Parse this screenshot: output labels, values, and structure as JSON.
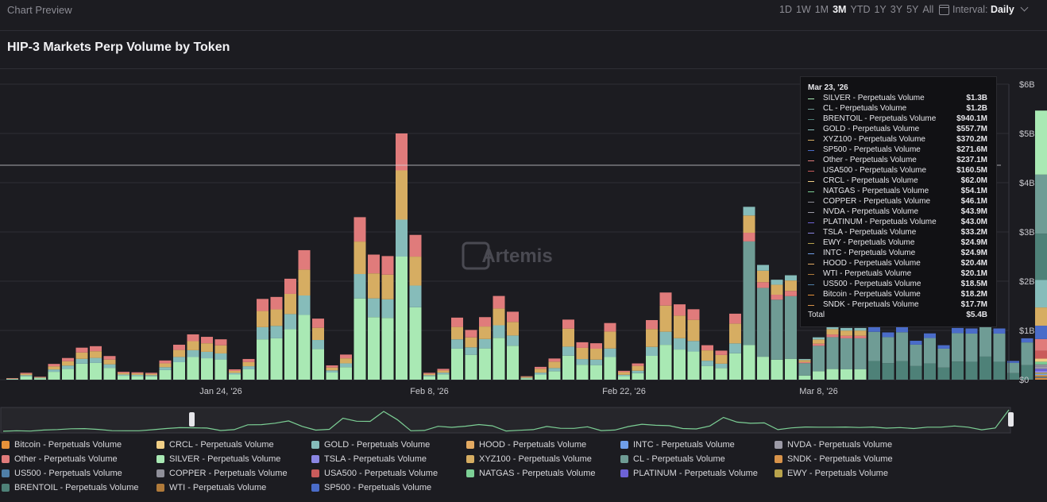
{
  "header": {
    "preview_label": "Chart Preview",
    "ranges": [
      "1D",
      "1W",
      "1M",
      "3M",
      "YTD",
      "1Y",
      "3Y",
      "5Y",
      "All"
    ],
    "selected_range": "3M",
    "interval_label": "Interval:",
    "interval_value": "Daily"
  },
  "watermark": "Artemis",
  "chart_data": {
    "type": "bar",
    "stacked": true,
    "title": "HIP-3 Markets Perp Volume by Token",
    "unit": "$B",
    "ylim": [
      0,
      6
    ],
    "y_ticks": [
      "$0",
      "$1B",
      "$2B",
      "$3B",
      "$4B",
      "$5B",
      "$6B"
    ],
    "x_tick_labels": [
      "Jan 24, '26",
      "Feb 8, '26",
      "Feb 22, '26",
      "Mar 8, '26"
    ],
    "x_tick_index": [
      15,
      30,
      44,
      58
    ],
    "series_order": [
      "Bitcoin",
      "CRCL",
      "GOLD",
      "HOOD",
      "INTC",
      "NVDA",
      "Other",
      "SILVER",
      "TSLA",
      "XYZ100",
      "CL",
      "SNDK",
      "US500",
      "COPPER",
      "USA500",
      "NATGAS",
      "PLATINUM",
      "EWY",
      "BRENTOIL",
      "WTI",
      "SP500"
    ],
    "colors": {
      "Bitcoin": "#e8923a",
      "CRCL": "#f1cf86",
      "GOLD": "#86bcba",
      "HOOD": "#e3aa62",
      "INTC": "#6f9ee8",
      "NVDA": "#9c9aa6",
      "Other": "#e07b7b",
      "SILVER": "#a9e9b4",
      "TSLA": "#8b86e3",
      "XYZ100": "#d6ad62",
      "CL": "#6f9c95",
      "SNDK": "#d8934a",
      "US500": "#4f7fa8",
      "COPPER": "#8f8f99",
      "USA500": "#c95b5b",
      "NATGAS": "#7ccf95",
      "PLATINUM": "#6d62d6",
      "EWY": "#b8a34c",
      "BRENTOIL": "#4e8178",
      "WTI": "#b07a3a",
      "SP500": "#4a6cc9"
    },
    "totals": [
      0.03,
      0.14,
      0.06,
      0.32,
      0.44,
      0.65,
      0.68,
      0.48,
      0.16,
      0.15,
      0.14,
      0.39,
      0.71,
      0.92,
      0.87,
      0.82,
      0.21,
      0.42,
      1.64,
      1.68,
      2.05,
      2.63,
      1.24,
      0.29,
      0.51,
      3.3,
      2.54,
      2.51,
      5.0,
      2.94,
      0.14,
      0.22,
      1.26,
      1.01,
      1.27,
      1.7,
      1.38,
      0.07,
      0.26,
      0.43,
      1.22,
      0.76,
      0.74,
      1.15,
      0.18,
      0.33,
      1.21,
      1.77,
      1.53,
      1.43,
      0.7,
      0.59,
      1.34,
      3.51,
      2.33,
      2.03,
      2.12,
      0.42,
      0.86,
      1.08,
      1.05,
      1.05,
      1.08,
      0.96,
      1.07,
      0.79,
      0.94,
      0.7,
      1.05,
      1.04,
      1.34,
      1.04,
      0.38,
      0.84,
      5.4
    ],
    "shares": [
      {
        "SILVER": 0.5,
        "GOLD": 0.15,
        "XYZ100": 0.2,
        "Other": 0.15
      },
      {
        "SILVER": 0.4,
        "GOLD": 0.15,
        "XYZ100": 0.3,
        "Other": 0.15
      },
      {
        "SILVER": 0.2,
        "CL": 0.6,
        "Other": 0.05,
        "XYZ100": 0.1,
        "GOLD": 0.05
      },
      {
        "BRENTOIL": 0.35,
        "CL": 0.55,
        "SP500": 0.1
      }
    ],
    "share_segments": [
      0,
      37,
      53,
      62,
      75
    ],
    "tooltip": {
      "date": "Mar 23, '26",
      "rows": [
        {
          "name": "SILVER - Perpetuals Volume",
          "value": "$1.3B",
          "color": "#a9e9b4"
        },
        {
          "name": "CL - Perpetuals Volume",
          "value": "$1.2B",
          "color": "#6f9c95"
        },
        {
          "name": "BRENTOIL - Perpetuals Volume",
          "value": "$940.1M",
          "color": "#4e8178"
        },
        {
          "name": "GOLD - Perpetuals Volume",
          "value": "$557.7M",
          "color": "#86bcba"
        },
        {
          "name": "XYZ100 - Perpetuals Volume",
          "value": "$370.2M",
          "color": "#d6ad62"
        },
        {
          "name": "SP500 - Perpetuals Volume",
          "value": "$271.6M",
          "color": "#4a6cc9"
        },
        {
          "name": "Other - Perpetuals Volume",
          "value": "$237.1M",
          "color": "#e07b7b"
        },
        {
          "name": "USA500 - Perpetuals Volume",
          "value": "$160.5M",
          "color": "#c95b5b"
        },
        {
          "name": "CRCL - Perpetuals Volume",
          "value": "$62.0M",
          "color": "#f1cf86"
        },
        {
          "name": "NATGAS - Perpetuals Volume",
          "value": "$54.1M",
          "color": "#7ccf95"
        },
        {
          "name": "COPPER - Perpetuals Volume",
          "value": "$46.1M",
          "color": "#8f8f99"
        },
        {
          "name": "NVDA - Perpetuals Volume",
          "value": "$43.9M",
          "color": "#9c9aa6"
        },
        {
          "name": "PLATINUM - Perpetuals Volume",
          "value": "$43.0M",
          "color": "#6d62d6"
        },
        {
          "name": "TSLA - Perpetuals Volume",
          "value": "$33.2M",
          "color": "#8b86e3"
        },
        {
          "name": "EWY - Perpetuals Volume",
          "value": "$24.9M",
          "color": "#b8a34c"
        },
        {
          "name": "INTC - Perpetuals Volume",
          "value": "$24.9M",
          "color": "#6f9ee8"
        },
        {
          "name": "HOOD - Perpetuals Volume",
          "value": "$20.4M",
          "color": "#e3aa62"
        },
        {
          "name": "WTI - Perpetuals Volume",
          "value": "$20.1M",
          "color": "#b07a3a"
        },
        {
          "name": "US500 - Perpetuals Volume",
          "value": "$18.5M",
          "color": "#4f7fa8"
        },
        {
          "name": "Bitcoin - Perpetuals Volume",
          "value": "$18.2M",
          "color": "#e8923a"
        },
        {
          "name": "SNDK - Perpetuals Volume",
          "value": "$17.7M",
          "color": "#d8934a"
        }
      ],
      "total_label": "Total",
      "total_value": "$5.4B"
    },
    "legend": [
      {
        "name": "Bitcoin - Perpetuals Volume",
        "color": "#e8923a"
      },
      {
        "name": "CRCL - Perpetuals Volume",
        "color": "#f1cf86"
      },
      {
        "name": "GOLD - Perpetuals Volume",
        "color": "#86bcba"
      },
      {
        "name": "HOOD - Perpetuals Volume",
        "color": "#e3aa62"
      },
      {
        "name": "INTC - Perpetuals Volume",
        "color": "#6f9ee8"
      },
      {
        "name": "NVDA - Perpetuals Volume",
        "color": "#9c9aa6"
      },
      {
        "name": "Other - Perpetuals Volume",
        "color": "#e07b7b"
      },
      {
        "name": "SILVER - Perpetuals Volume",
        "color": "#a9e9b4"
      },
      {
        "name": "TSLA - Perpetuals Volume",
        "color": "#8b86e3"
      },
      {
        "name": "XYZ100 - Perpetuals Volume",
        "color": "#d6ad62"
      },
      {
        "name": "CL - Perpetuals Volume",
        "color": "#6f9c95"
      },
      {
        "name": "SNDK - Perpetuals Volume",
        "color": "#d8934a"
      },
      {
        "name": "US500 - Perpetuals Volume",
        "color": "#4f7fa8"
      },
      {
        "name": "COPPER - Perpetuals Volume",
        "color": "#8f8f99"
      },
      {
        "name": "USA500 - Perpetuals Volume",
        "color": "#c95b5b"
      },
      {
        "name": "NATGAS - Perpetuals Volume",
        "color": "#7ccf95"
      },
      {
        "name": "PLATINUM - Perpetuals Volume",
        "color": "#6d62d6"
      },
      {
        "name": "EWY - Perpetuals Volume",
        "color": "#b8a34c"
      },
      {
        "name": "BRENTOIL - Perpetuals Volume",
        "color": "#4e8178"
      },
      {
        "name": "WTI - Perpetuals Volume",
        "color": "#b07a3a"
      },
      {
        "name": "SP500 - Perpetuals Volume",
        "color": "#4a6cc9"
      }
    ]
  }
}
